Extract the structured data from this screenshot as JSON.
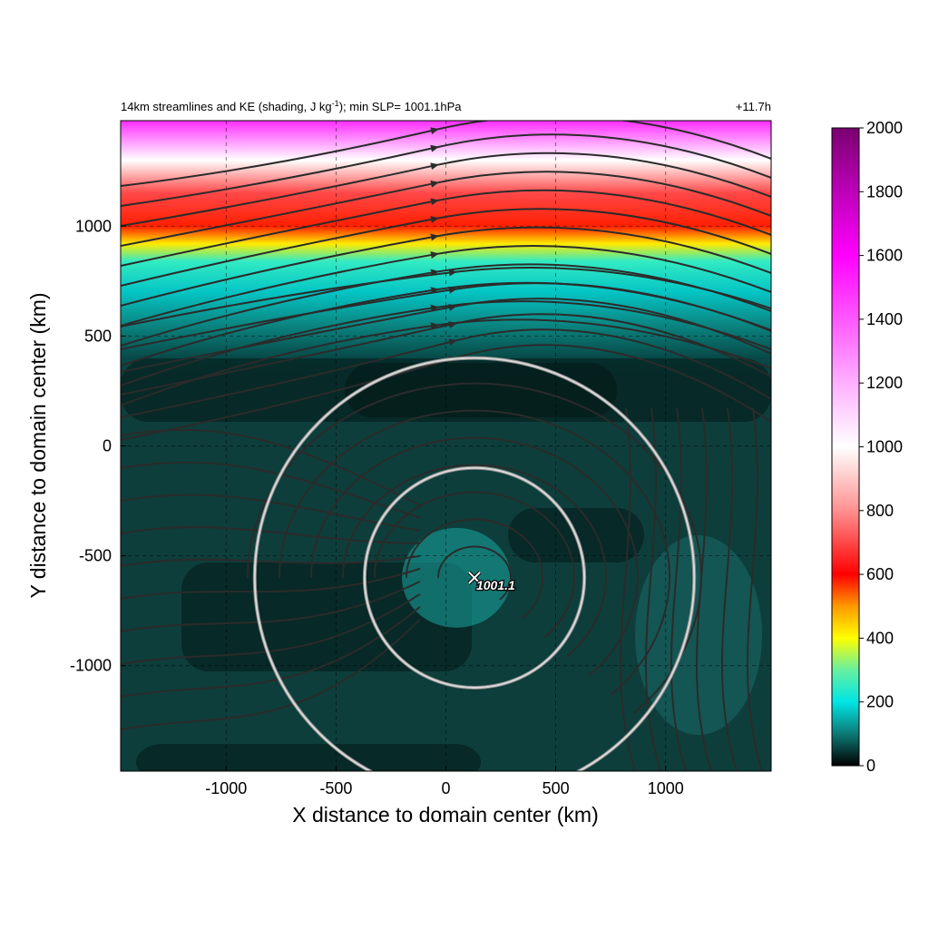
{
  "chart_data": {
    "type": "heatmap",
    "title_main": "14km streamlines and KE (shading, J kg",
    "title_sup": "-1",
    "title_rest": "); min SLP= 1001.1hPa",
    "time_label": "+11.7h",
    "xlabel": "X distance to domain center (km)",
    "ylabel": "Y distance to domain center (km)",
    "xlim": [
      -1480,
      1480
    ],
    "ylim": [
      -1480,
      1480
    ],
    "xticks": [
      -1000,
      -500,
      0,
      500,
      1000
    ],
    "yticks": [
      -1000,
      -500,
      0,
      500,
      1000
    ],
    "xtick_labels": [
      "-1000",
      "-500",
      "0",
      "500",
      "1000"
    ],
    "ytick_labels": [
      "-1000",
      "-500",
      "0",
      "500",
      "1000"
    ],
    "grid": true,
    "colorbar": {
      "range": [
        0,
        2000
      ],
      "ticks": [
        0,
        200,
        400,
        600,
        800,
        1000,
        1200,
        1400,
        1600,
        1800,
        2000
      ],
      "tick_labels": [
        "0",
        "200",
        "400",
        "600",
        "800",
        "1000",
        "1200",
        "1400",
        "1600",
        "1800",
        "2000"
      ],
      "colors": [
        {
          "v": 0,
          "c": "#000000"
        },
        {
          "v": 100,
          "c": "#0c7a76"
        },
        {
          "v": 200,
          "c": "#00e5e5"
        },
        {
          "v": 300,
          "c": "#66f0a0"
        },
        {
          "v": 400,
          "c": "#ffff00"
        },
        {
          "v": 500,
          "c": "#ff9900"
        },
        {
          "v": 600,
          "c": "#ff0000"
        },
        {
          "v": 800,
          "c": "#ff9090"
        },
        {
          "v": 1000,
          "c": "#ffffff"
        },
        {
          "v": 1200,
          "c": "#ffb0ff"
        },
        {
          "v": 1600,
          "c": "#ff00ff"
        },
        {
          "v": 2000,
          "c": "#7a0070"
        }
      ]
    },
    "min_slp": {
      "x": 130,
      "y": -600,
      "label": "1001.1"
    },
    "circles": [
      {
        "cx": 130,
        "cy": -600,
        "r": 500
      },
      {
        "cx": 130,
        "cy": -600,
        "r": 1000
      }
    ],
    "ke_bands": [
      {
        "y": 1480,
        "ke": 1500
      },
      {
        "y": 1300,
        "ke": 1000
      },
      {
        "y": 1150,
        "ke": 700
      },
      {
        "y": 1000,
        "ke": 580
      },
      {
        "y": 920,
        "ke": 420
      },
      {
        "y": 840,
        "ke": 250
      },
      {
        "y": 700,
        "ke": 170
      },
      {
        "y": 550,
        "ke": 110
      },
      {
        "y": 400,
        "ke": 60
      }
    ],
    "colors": {
      "stream": "#2b2b2b",
      "circle": "#d8d8d8",
      "background_field": "#0d3e3c",
      "dark_field": "#041816"
    }
  }
}
